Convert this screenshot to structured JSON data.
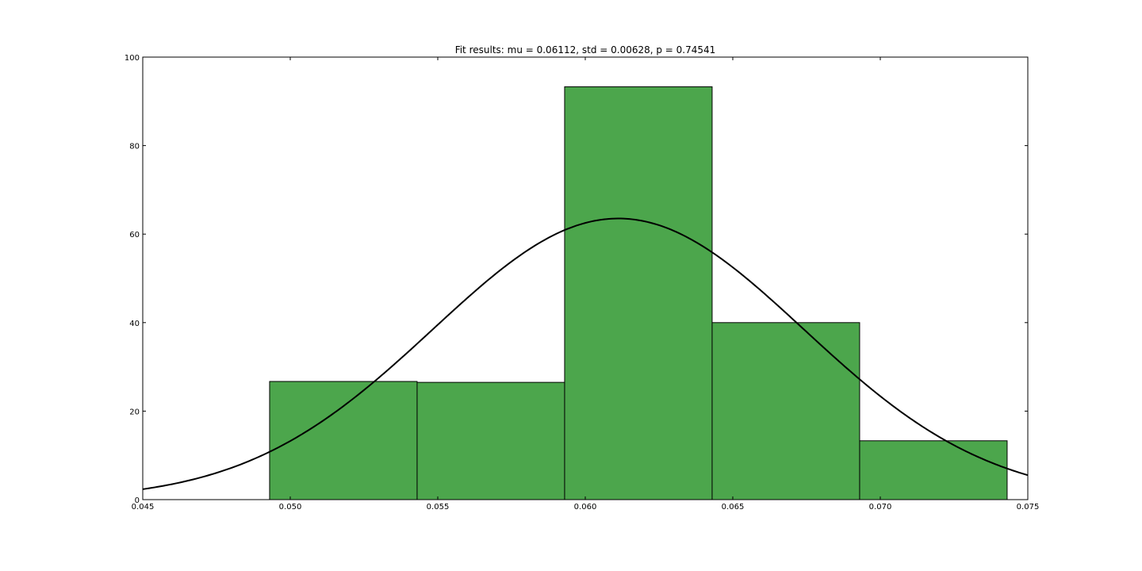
{
  "chart_data": {
    "type": "bar",
    "title": "Fit results: mu = 0.06112,  std = 0.00628, p = 0.74541",
    "xlabel": "",
    "ylabel": "",
    "xlim": [
      0.045,
      0.075
    ],
    "ylim": [
      0,
      100
    ],
    "xticks": [
      "0.045",
      "0.050",
      "0.055",
      "0.060",
      "0.065",
      "0.070",
      "0.075"
    ],
    "yticks": [
      "0",
      "20",
      "40",
      "60",
      "80",
      "100"
    ],
    "grid": false,
    "bins": [
      {
        "x0": 0.0493,
        "x1": 0.0543,
        "value": 26.7
      },
      {
        "x0": 0.0543,
        "x1": 0.0593,
        "value": 26.5
      },
      {
        "x0": 0.0593,
        "x1": 0.0643,
        "value": 93.3
      },
      {
        "x0": 0.0643,
        "x1": 0.0693,
        "value": 40.0
      },
      {
        "x0": 0.0693,
        "x1": 0.0743,
        "value": 13.3
      }
    ],
    "fit_curve": {
      "type": "normal_pdf",
      "mu": 0.06112,
      "std": 0.00628
    },
    "colors": {
      "bar_fill": "#4ca64c",
      "bar_edge": "#000000",
      "curve": "#000000"
    }
  }
}
